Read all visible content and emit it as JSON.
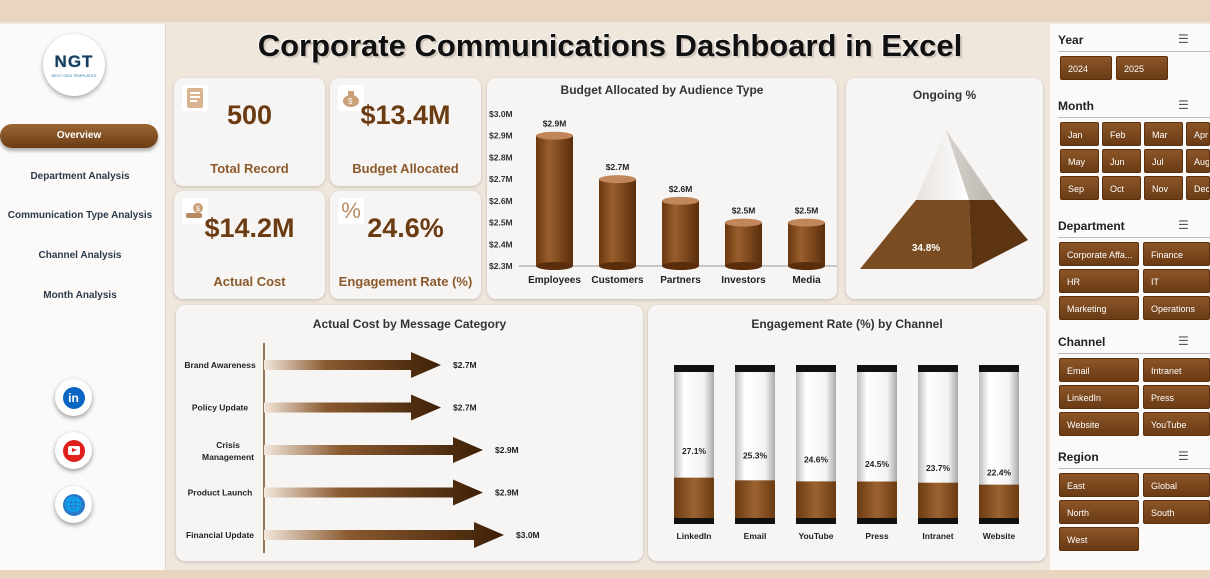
{
  "title": "Corporate Communications Dashboard in Excel",
  "logo": {
    "text": "NGT",
    "tagline": "NEXT GEN TEMPLATES"
  },
  "nav": [
    "Overview",
    "Department Analysis",
    "Communication Type Analysis",
    "Channel Analysis",
    "Month Analysis"
  ],
  "social": {
    "linkedin": "in",
    "web": "🌐"
  },
  "kpis": [
    {
      "icon": "document-icon",
      "value": "500",
      "label": "Total Record"
    },
    {
      "icon": "money-bag-icon",
      "value": "$13.4M",
      "label": "Budget Allocated"
    },
    {
      "icon": "money-hand-icon",
      "value": "$14.2M",
      "label": "Actual Cost"
    },
    {
      "icon": "percent-icon",
      "value": "24.6%",
      "label": "Engagement Rate (%)"
    }
  ],
  "budget_chart": {
    "title": "Budget Allocated by Audience Type",
    "yticks": [
      "$3.0M",
      "$2.9M",
      "$2.8M",
      "$2.7M",
      "$2.6M",
      "$2.5M",
      "$2.4M",
      "$2.3M"
    ],
    "categories": [
      "Employees",
      "Customers",
      "Partners",
      "Investors",
      "Media"
    ],
    "labels": [
      "$2.9M",
      "$2.7M",
      "$2.6M",
      "$2.5M",
      "$2.5M"
    ]
  },
  "ongoing_chart": {
    "title": "Ongoing %",
    "value_label": "34.8%"
  },
  "cost_chart": {
    "title": "Actual Cost by Message Category",
    "categories": [
      "Brand Awareness",
      "Policy Update",
      "Crisis Management",
      "Product Launch",
      "Financial Update"
    ],
    "labels": [
      "$2.7M",
      "$2.7M",
      "$2.9M",
      "$2.9M",
      "$3.0M"
    ]
  },
  "engagement_chart": {
    "title": "Engagement Rate (%) by Channel",
    "categories": [
      "LinkedIn",
      "Email",
      "YouTube",
      "Press",
      "Intranet",
      "Website"
    ],
    "labels": [
      "27.1%",
      "25.3%",
      "24.6%",
      "24.5%",
      "23.7%",
      "22.4%"
    ]
  },
  "chart_data": [
    {
      "type": "bar",
      "title": "Budget Allocated by Audience Type",
      "categories": [
        "Employees",
        "Customers",
        "Partners",
        "Investors",
        "Media"
      ],
      "values": [
        2.9,
        2.7,
        2.6,
        2.5,
        2.5
      ],
      "unit": "$M",
      "ylim": [
        2.3,
        3.0
      ]
    },
    {
      "type": "pie",
      "title": "Ongoing %",
      "values": [
        34.8
      ]
    },
    {
      "type": "bar",
      "orientation": "horizontal",
      "title": "Actual Cost by Message Category",
      "categories": [
        "Brand Awareness",
        "Policy Update",
        "Crisis Management",
        "Product Launch",
        "Financial Update"
      ],
      "values": [
        2.7,
        2.7,
        2.9,
        2.9,
        3.0
      ],
      "unit": "$M"
    },
    {
      "type": "bar",
      "title": "Engagement Rate (%) by Channel",
      "categories": [
        "LinkedIn",
        "Email",
        "YouTube",
        "Press",
        "Intranet",
        "Website"
      ],
      "values": [
        27.1,
        25.3,
        24.6,
        24.5,
        23.7,
        22.4
      ]
    }
  ],
  "slicers": {
    "year": {
      "title": "Year",
      "items": [
        "2024",
        "2025"
      ]
    },
    "month": {
      "title": "Month",
      "items": [
        "Jan",
        "Feb",
        "Mar",
        "Apr",
        "May",
        "Jun",
        "Jul",
        "Aug",
        "Sep",
        "Oct",
        "Nov",
        "Dec"
      ]
    },
    "department": {
      "title": "Department",
      "items": [
        "Corporate Affa...",
        "Finance",
        "HR",
        "IT",
        "Marketing",
        "Operations"
      ]
    },
    "channel": {
      "title": "Channel",
      "items": [
        "Email",
        "Intranet",
        "LinkedIn",
        "Press",
        "Website",
        "YouTube"
      ]
    },
    "region": {
      "title": "Region",
      "items": [
        "East",
        "Global",
        "North",
        "South",
        "West"
      ]
    }
  },
  "colors": {
    "brown": "#6b3b12",
    "brown_light": "#a06a3a",
    "accent": "#8b5a2b"
  }
}
